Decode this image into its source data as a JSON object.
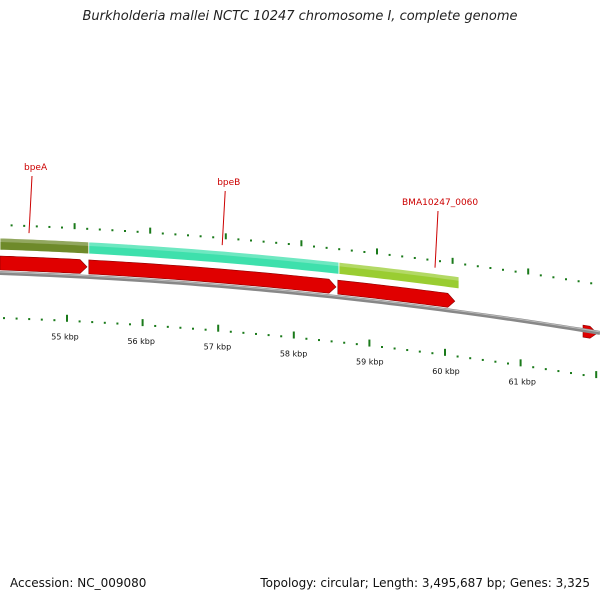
{
  "title": "Burkholderia mallei NCTC 10247 chromosome I, complete genome",
  "footer": {
    "accession": "Accession: NC_009080",
    "info": "Topology: circular; Length: 3,495,687 bp; Genes: 3,325"
  },
  "genes": [
    {
      "name": "bpeA",
      "label_start": 0.04,
      "box_start": 0.0,
      "box_end": 0.148,
      "color": "#6e8a2a",
      "arrow_start": 0.0,
      "arrow_end": 0.145
    },
    {
      "name": "bpeB",
      "label_start": 0.362,
      "box_start": 0.148,
      "box_end": 0.565,
      "color": "#3ee0ac",
      "arrow_start": 0.148,
      "arrow_end": 0.56
    },
    {
      "name": "BMA10247_0060",
      "label_start": 0.67,
      "box_start": 0.565,
      "box_end": 0.765,
      "color": "#9acd32",
      "arrow_start": 0.563,
      "arrow_end": 0.758
    }
  ],
  "scale_labels": [
    "55 kbp",
    "56 kbp",
    "57 kbp",
    "58 kbp",
    "59 kbp",
    "60 kbp",
    "61 kbp"
  ],
  "colors": {
    "cds_arrow": "#e00000",
    "backbone": "#888888",
    "tick": "#1a7a1a",
    "label_line": "#cc0000"
  }
}
